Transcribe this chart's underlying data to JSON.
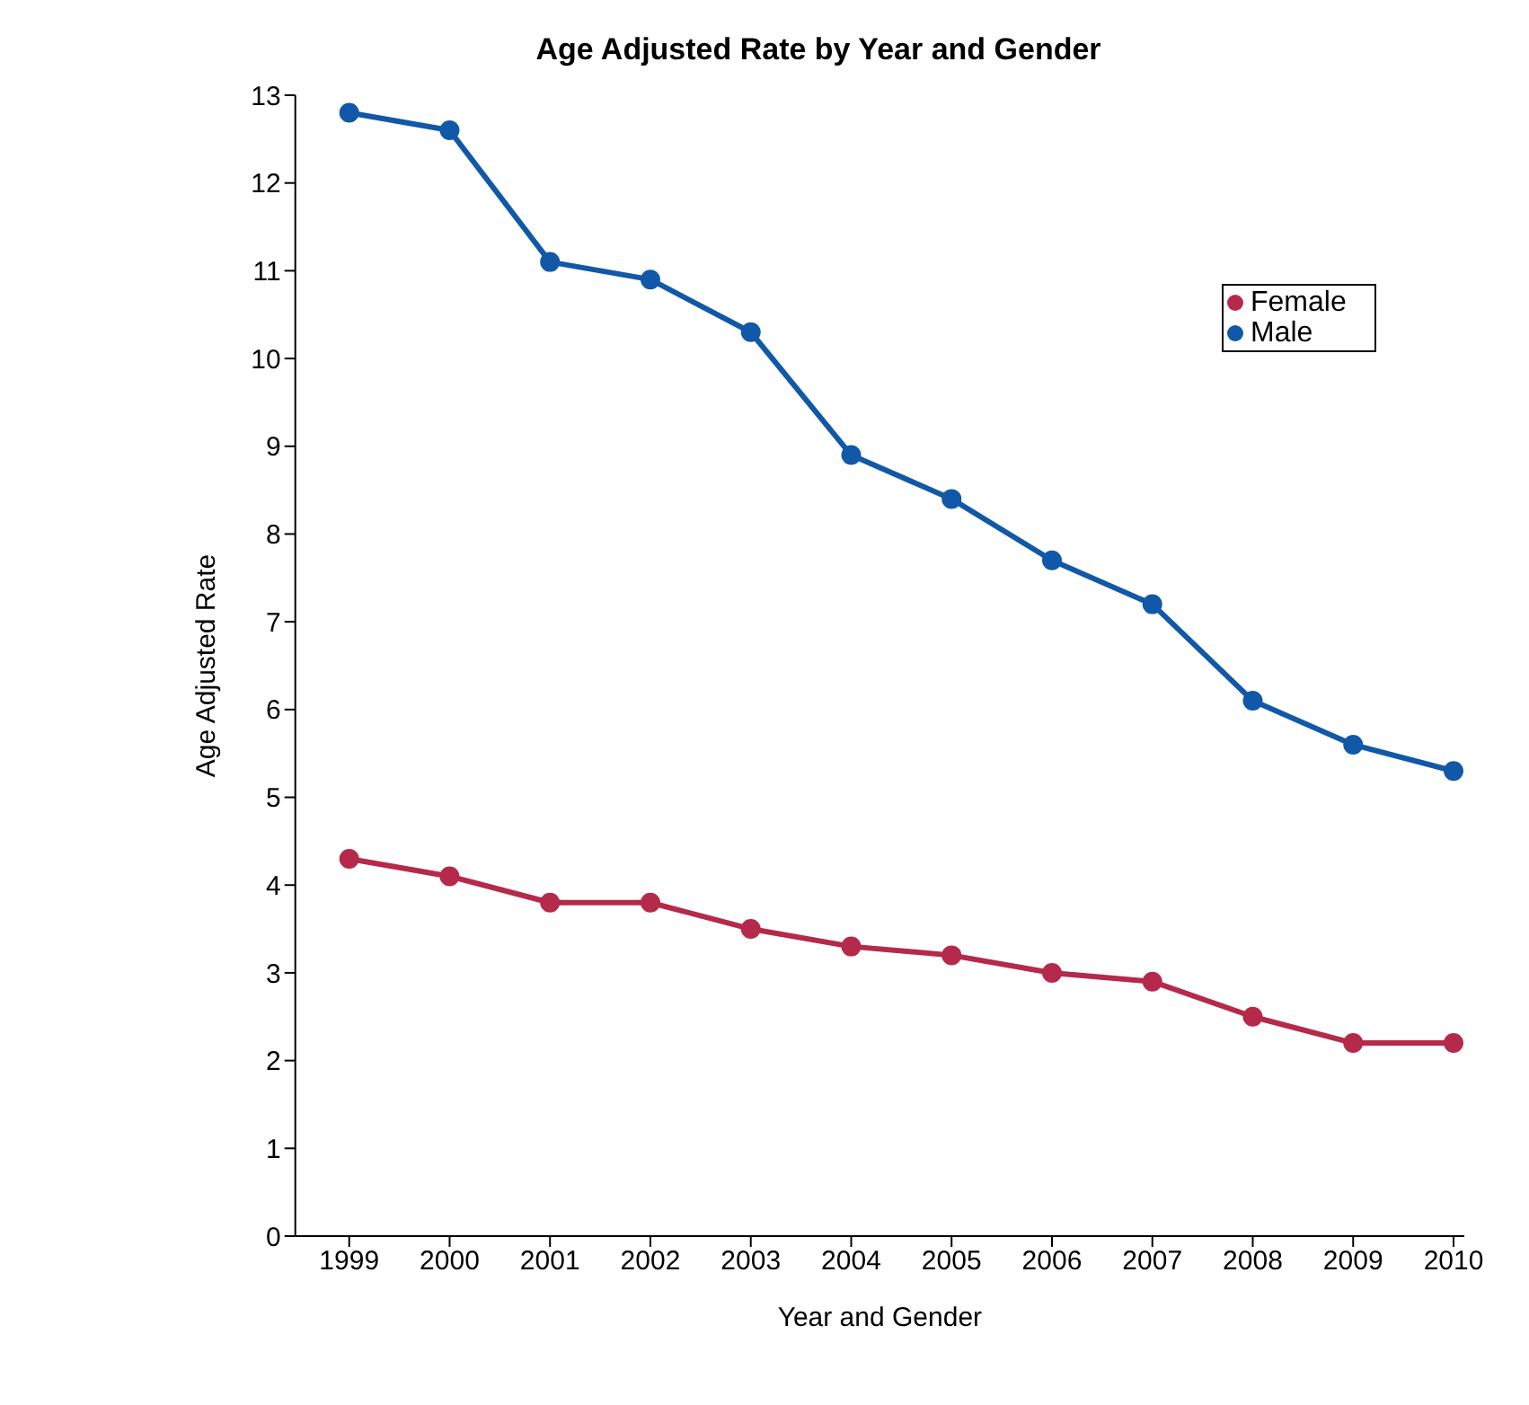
{
  "chart_data": {
    "type": "line",
    "title": "Age Adjusted Rate by Year and Gender",
    "xlabel": "Year and Gender",
    "ylabel": "Age Adjusted Rate",
    "categories": [
      "1999",
      "2000",
      "2001",
      "2002",
      "2003",
      "2004",
      "2005",
      "2006",
      "2007",
      "2008",
      "2009",
      "2010"
    ],
    "series": [
      {
        "name": "Female",
        "color": "#b5294a",
        "values": [
          4.3,
          4.1,
          3.8,
          3.8,
          3.5,
          3.3,
          3.2,
          3.0,
          2.9,
          2.5,
          2.2,
          2.2
        ]
      },
      {
        "name": "Male",
        "color": "#1158a8",
        "values": [
          12.8,
          12.6,
          11.1,
          10.9,
          10.3,
          8.9,
          8.4,
          7.7,
          7.2,
          6.1,
          5.6,
          5.3
        ]
      }
    ],
    "ylim": [
      0,
      13
    ],
    "yticks": [
      0,
      1,
      2,
      3,
      4,
      5,
      6,
      7,
      8,
      9,
      10,
      11,
      12,
      13
    ],
    "grid": false,
    "legend": "top right",
    "marker": "circle",
    "line_style": "solid"
  }
}
